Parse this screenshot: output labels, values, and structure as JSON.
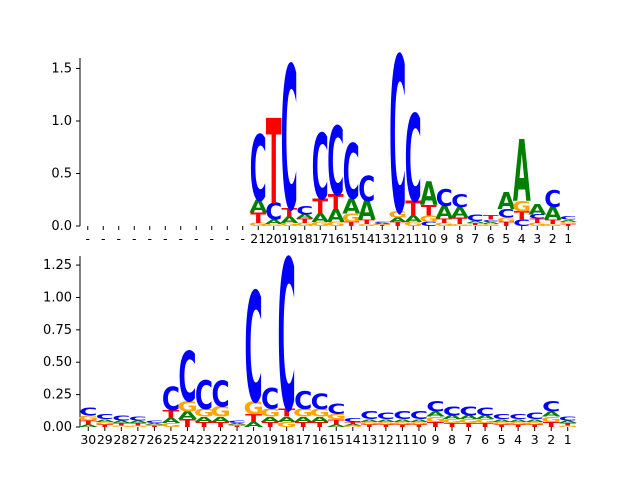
{
  "colors": {
    "A": "#008000",
    "C": "#0000ff",
    "G": "#ffa500",
    "T": "#ff0000",
    "axis": "#000000",
    "background": "#ffffff"
  },
  "chart_data": [
    {
      "type": "sequence-logo",
      "title": "",
      "xlabel": "",
      "ylabel": "",
      "ylim": [
        0,
        1.6
      ],
      "yticks": [
        "0.0",
        "0.5",
        "1.0",
        "1.5"
      ],
      "ytick_values": [
        0,
        0.5,
        1.0,
        1.5
      ],
      "x_tick_labels": [
        "-",
        "-",
        "-",
        "-",
        "-",
        "-",
        "-",
        "-",
        "-",
        "-",
        "-",
        "21",
        "20",
        "19",
        "18",
        "17",
        "16",
        "15",
        "14",
        "13",
        "12",
        "11",
        "10",
        "9",
        "8",
        "7",
        "6",
        "5",
        "4",
        "3",
        "2",
        "1"
      ],
      "positions": [
        {
          "A": 0,
          "C": 0,
          "G": 0,
          "T": 0
        },
        {
          "A": 0,
          "C": 0,
          "G": 0,
          "T": 0
        },
        {
          "A": 0,
          "C": 0,
          "G": 0,
          "T": 0
        },
        {
          "A": 0,
          "C": 0,
          "G": 0,
          "T": 0
        },
        {
          "A": 0,
          "C": 0,
          "G": 0,
          "T": 0
        },
        {
          "A": 0,
          "C": 0,
          "G": 0,
          "T": 0
        },
        {
          "A": 0,
          "C": 0,
          "G": 0,
          "T": 0
        },
        {
          "A": 0,
          "C": 0,
          "G": 0,
          "T": 0
        },
        {
          "A": 0,
          "C": 0,
          "G": 0,
          "T": 0
        },
        {
          "A": 0,
          "C": 0,
          "G": 0,
          "T": 0
        },
        {
          "A": 0,
          "C": 0,
          "G": 0,
          "T": 0
        },
        {
          "A": 0.12,
          "C": 0.62,
          "G": 0.03,
          "T": 0.1
        },
        {
          "A": 0.04,
          "C": 0.16,
          "G": 0.02,
          "T": 0.8
        },
        {
          "A": 0.06,
          "C": 1.35,
          "G": 0.03,
          "T": 0.08
        },
        {
          "A": 0.04,
          "C": 0.08,
          "G": 0.03,
          "T": 0.04
        },
        {
          "A": 0.08,
          "C": 0.62,
          "G": 0.04,
          "T": 0.14
        },
        {
          "A": 0.12,
          "C": 0.65,
          "G": 0.04,
          "T": 0.14
        },
        {
          "A": 0.14,
          "C": 0.52,
          "G": 0.08,
          "T": 0.04
        },
        {
          "A": 0.18,
          "C": 0.24,
          "G": 0.02,
          "T": 0.04
        },
        {
          "A": 0.01,
          "C": 0.01,
          "G": 0.01,
          "T": 0.01
        },
        {
          "A": 0.04,
          "C": 1.47,
          "G": 0.06,
          "T": 0.04
        },
        {
          "A": 0.06,
          "C": 0.82,
          "G": 0.04,
          "T": 0.14
        },
        {
          "A": 0.22,
          "C": 0.04,
          "G": 0.06,
          "T": 0.1
        },
        {
          "A": 0.12,
          "C": 0.16,
          "G": 0.03,
          "T": 0.04
        },
        {
          "A": 0.1,
          "C": 0.12,
          "G": 0.02,
          "T": 0.06
        },
        {
          "A": 0.02,
          "C": 0.06,
          "G": 0.01,
          "T": 0.02
        },
        {
          "A": 0.02,
          "C": 0.02,
          "G": 0.02,
          "T": 0.04
        },
        {
          "A": 0.16,
          "C": 0.08,
          "G": 0.04,
          "T": 0.04
        },
        {
          "A": 0.58,
          "C": 0.06,
          "G": 0.1,
          "T": 0.08
        },
        {
          "A": 0.1,
          "C": 0.04,
          "G": 0.03,
          "T": 0.04
        },
        {
          "A": 0.12,
          "C": 0.16,
          "G": 0.02,
          "T": 0.04
        },
        {
          "A": 0.02,
          "C": 0.03,
          "G": 0.02,
          "T": 0.02
        }
      ]
    },
    {
      "type": "sequence-logo",
      "title": "",
      "xlabel": "",
      "ylabel": "",
      "ylim": [
        0,
        1.32
      ],
      "yticks": [
        "0.00",
        "0.25",
        "0.50",
        "0.75",
        "1.00",
        "1.25"
      ],
      "ytick_values": [
        0,
        0.25,
        0.5,
        0.75,
        1.0,
        1.25
      ],
      "x_tick_labels": [
        "30",
        "29",
        "28",
        "27",
        "26",
        "25",
        "24",
        "23",
        "22",
        "21",
        "20",
        "19",
        "18",
        "17",
        "16",
        "15",
        "14",
        "13",
        "12",
        "11",
        "10",
        "9",
        "8",
        "7",
        "6",
        "5",
        "4",
        "3",
        "2",
        "1"
      ],
      "positions": [
        {
          "A": 0.02,
          "C": 0.06,
          "G": 0.04,
          "T": 0.03
        },
        {
          "A": 0.02,
          "C": 0.04,
          "G": 0.02,
          "T": 0.02
        },
        {
          "A": 0.02,
          "C": 0.04,
          "G": 0.01,
          "T": 0.02
        },
        {
          "A": 0.02,
          "C": 0.03,
          "G": 0.01,
          "T": 0.02
        },
        {
          "A": 0.01,
          "C": 0.02,
          "G": 0.01,
          "T": 0.01
        },
        {
          "A": 0.04,
          "C": 0.18,
          "G": 0.03,
          "T": 0.06
        },
        {
          "A": 0.06,
          "C": 0.38,
          "G": 0.08,
          "T": 0.06
        },
        {
          "A": 0.04,
          "C": 0.22,
          "G": 0.06,
          "T": 0.04
        },
        {
          "A": 0.04,
          "C": 0.2,
          "G": 0.08,
          "T": 0.04
        },
        {
          "A": 0.01,
          "C": 0.02,
          "G": 0.01,
          "T": 0.01
        },
        {
          "A": 0.04,
          "C": 0.84,
          "G": 0.1,
          "T": 0.06
        },
        {
          "A": 0.04,
          "C": 0.16,
          "G": 0.06,
          "T": 0.04
        },
        {
          "A": 0.04,
          "C": 1.15,
          "G": 0.04,
          "T": 0.06
        },
        {
          "A": 0.04,
          "C": 0.14,
          "G": 0.06,
          "T": 0.04
        },
        {
          "A": 0.04,
          "C": 0.12,
          "G": 0.06,
          "T": 0.04
        },
        {
          "A": 0.02,
          "C": 0.08,
          "G": 0.04,
          "T": 0.04
        },
        {
          "A": 0.01,
          "C": 0.03,
          "G": 0.01,
          "T": 0.02
        },
        {
          "A": 0.02,
          "C": 0.06,
          "G": 0.02,
          "T": 0.02
        },
        {
          "A": 0.02,
          "C": 0.05,
          "G": 0.02,
          "T": 0.02
        },
        {
          "A": 0.02,
          "C": 0.06,
          "G": 0.02,
          "T": 0.02
        },
        {
          "A": 0.02,
          "C": 0.06,
          "G": 0.02,
          "T": 0.02
        },
        {
          "A": 0.04,
          "C": 0.08,
          "G": 0.04,
          "T": 0.04
        },
        {
          "A": 0.03,
          "C": 0.07,
          "G": 0.03,
          "T": 0.03
        },
        {
          "A": 0.03,
          "C": 0.07,
          "G": 0.03,
          "T": 0.03
        },
        {
          "A": 0.03,
          "C": 0.06,
          "G": 0.03,
          "T": 0.03
        },
        {
          "A": 0.02,
          "C": 0.04,
          "G": 0.02,
          "T": 0.02
        },
        {
          "A": 0.02,
          "C": 0.04,
          "G": 0.02,
          "T": 0.02
        },
        {
          "A": 0.02,
          "C": 0.05,
          "G": 0.02,
          "T": 0.02
        },
        {
          "A": 0.04,
          "C": 0.08,
          "G": 0.04,
          "T": 0.04
        },
        {
          "A": 0.02,
          "C": 0.03,
          "G": 0.01,
          "T": 0.02
        }
      ]
    }
  ]
}
